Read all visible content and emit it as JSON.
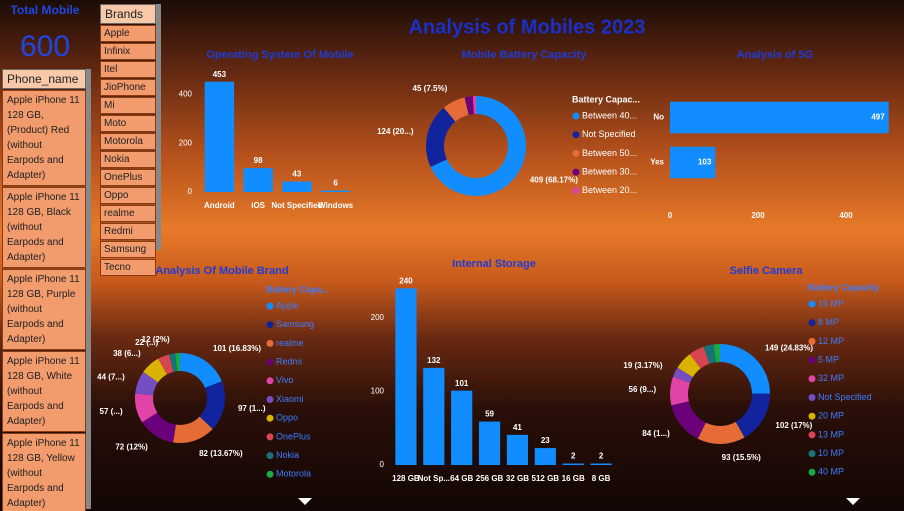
{
  "title": "Analysis of Mobiles 2023",
  "card": {
    "label": "Total Mobile",
    "value": 600
  },
  "phone_slicer": {
    "header": "Phone_name",
    "items": [
      "Apple iPhone 11 128 GB, (Product) Red (without Earpods and Adapter)",
      "Apple iPhone 11 128 GB, Black (without Earpods and Adapter)",
      "Apple iPhone 11 128 GB, Purple (without Earpods and Adapter)",
      "Apple iPhone 11 128 GB, White (without Earpods and Adapter)",
      "Apple iPhone 11 128 GB, Yellow (without Earpods and Adapter)"
    ]
  },
  "brand_slicer": {
    "header": "Brands",
    "items": [
      "Apple",
      "Infinix",
      "Itel",
      "JioPhone",
      "Mi",
      "Moto",
      "Motorola",
      "Nokia",
      "OnePlus",
      "Oppo",
      "realme",
      "Redmi",
      "Samsung",
      "Tecno"
    ]
  },
  "chart_data": [
    {
      "type": "bar",
      "title": "Operating System Of Mobile",
      "categories": [
        "Android",
        "iOS",
        "Not Specified",
        "Windows"
      ],
      "values": [
        453,
        98,
        43,
        6
      ],
      "color": "#118dff",
      "ylim": [
        0,
        460
      ],
      "yticks": [
        0,
        200,
        400
      ]
    },
    {
      "type": "pie",
      "title": "Mobile Battery Capacity",
      "legend_title": "Battery Capac...",
      "categories": [
        "Between 40...",
        "Not Specified",
        "Between 50...",
        "Between 30...",
        "Between 20..."
      ],
      "values": [
        409,
        124,
        45,
        16,
        6
      ],
      "value_labels": [
        "409 (68.17%)",
        "124 (20...)",
        "45 (7.5%)",
        null,
        null
      ],
      "colors": [
        "#118dff",
        "#12239e",
        "#e66c37",
        "#6b007b",
        "#e044a7"
      ]
    },
    {
      "type": "hbar",
      "title": "Analysis of 5G",
      "categories": [
        "No",
        "Yes"
      ],
      "values": [
        497,
        103
      ],
      "color": "#118dff",
      "xlim": [
        0,
        500
      ],
      "xticks": [
        0,
        200,
        400
      ]
    },
    {
      "type": "pie",
      "title": "Analysis Of Mobile Brand",
      "legend_title": "Battery Capa...",
      "categories": [
        "Apple",
        "Samsung",
        "realme",
        "Redmi",
        "Vivo",
        "Xiaomi",
        "Oppo",
        "OnePlus",
        "Nokia",
        "Motorola"
      ],
      "values": [
        101,
        97,
        82,
        72,
        57,
        44,
        38,
        22,
        12,
        9
      ],
      "value_labels": [
        "101 (16.83%)",
        "97 (1...)",
        "82 (13.67%)",
        "72 (12%)",
        "57 (...)",
        "44 (7...)",
        "38 (6...)",
        "22 (...)",
        "12 (2%)",
        null
      ],
      "colors": [
        "#118dff",
        "#12239e",
        "#e66c37",
        "#6b007b",
        "#e044a7",
        "#744ec2",
        "#d9b300",
        "#d64550",
        "#197278",
        "#1aab40"
      ]
    },
    {
      "type": "bar",
      "title": "Internal Storage",
      "categories": [
        "128 GB",
        "Not Sp...",
        "64 GB",
        "256 GB",
        "32 GB",
        "512 GB",
        "16 GB",
        "8 GB"
      ],
      "values": [
        240,
        132,
        101,
        59,
        41,
        23,
        2,
        2
      ],
      "color": "#118dff",
      "ylim": [
        0,
        250
      ],
      "yticks": [
        0,
        100,
        200
      ]
    },
    {
      "type": "pie",
      "title": "Selfie Camera",
      "legend_title": "Battery Capacity",
      "categories": [
        "16 MP",
        "8 MP",
        "12 MP",
        "5 MP",
        "32 MP",
        "Not Specified",
        "20 MP",
        "13 MP",
        "10 MP",
        "40 MP"
      ],
      "values": [
        149,
        102,
        93,
        84,
        56,
        19,
        35,
        30,
        20,
        12
      ],
      "value_labels": [
        "149 (24.83%)",
        "102 (17%)",
        "93 (15.5%)",
        "84 (1...)",
        "56 (9...)",
        "19 (3.17%)",
        null,
        null,
        null,
        null
      ],
      "colors": [
        "#118dff",
        "#12239e",
        "#e66c37",
        "#6b007b",
        "#e044a7",
        "#744ec2",
        "#d9b300",
        "#d64550",
        "#197278",
        "#1aab40"
      ]
    }
  ]
}
